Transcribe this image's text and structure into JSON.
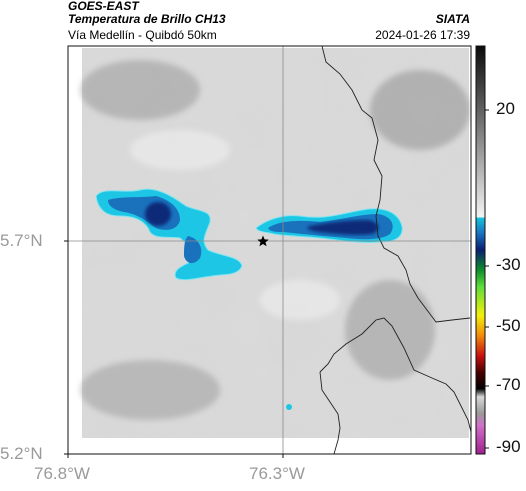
{
  "header": {
    "org": "GOES-EAST",
    "title": "Temperatura de Brillo CH13",
    "source": "SIATA",
    "subtitle": "Vía Medellín - Quibdó 50km",
    "datetime": "2024-01-26 17:39"
  },
  "map": {
    "lat_ticks": [
      "5.7°N",
      "5.2°N"
    ],
    "lon_ticks": [
      "76.8°W",
      "76.3°W"
    ],
    "lat_range": [
      5.2,
      5.75
    ],
    "lon_range": [
      -76.8,
      -76.1
    ],
    "crosshair": {
      "lat": 5.7,
      "lon": -76.3
    },
    "marker": {
      "lat": 5.7,
      "lon": -76.32,
      "symbol": "star"
    }
  },
  "colorbar": {
    "labels": [
      "20",
      "-30",
      "-50",
      "-70",
      "-90"
    ]
  },
  "colors": {
    "cold_cloud_light": "#22d3e6",
    "cold_cloud_mid": "#1a6fb5",
    "cold_cloud_dark": "#0c2a78",
    "ground_gray": "#b8b8b8"
  }
}
